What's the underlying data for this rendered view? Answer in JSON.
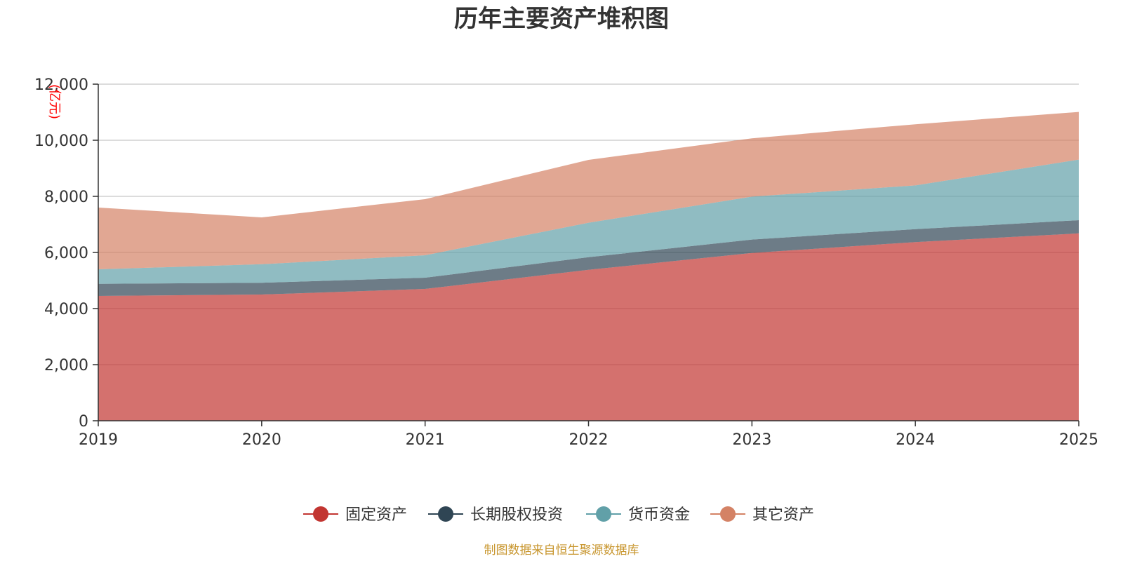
{
  "chart_data": {
    "type": "area",
    "stacked": true,
    "title": "历年主要资产堆积图",
    "unit_label": "(亿元)",
    "x": [
      "2019",
      "2020",
      "2021",
      "2022",
      "2023",
      "2024",
      "2025"
    ],
    "ylim": [
      0,
      12000
    ],
    "yticks": [
      0,
      2000,
      4000,
      6000,
      8000,
      10000,
      12000
    ],
    "ytick_labels": [
      "0",
      "2,000",
      "4,000",
      "6,000",
      "8,000",
      "10,000",
      "12,000"
    ],
    "grid": true,
    "legend_position": "bottom-center",
    "series": [
      {
        "name": "固定资产",
        "color": "#c23531",
        "values": [
          4450,
          4500,
          4700,
          5380,
          5980,
          6370,
          6680
        ]
      },
      {
        "name": "长期股权投资",
        "color": "#2f4554",
        "values": [
          430,
          420,
          400,
          450,
          480,
          460,
          470
        ]
      },
      {
        "name": "货币资金",
        "color": "#61a0a8",
        "values": [
          520,
          660,
          800,
          1230,
          1530,
          1560,
          2160
        ]
      },
      {
        "name": "其它资产",
        "color": "#d48265",
        "values": [
          2200,
          1670,
          2000,
          2240,
          2080,
          2180,
          1700
        ]
      }
    ]
  },
  "source_note": "制图数据来自恒生聚源数据库"
}
